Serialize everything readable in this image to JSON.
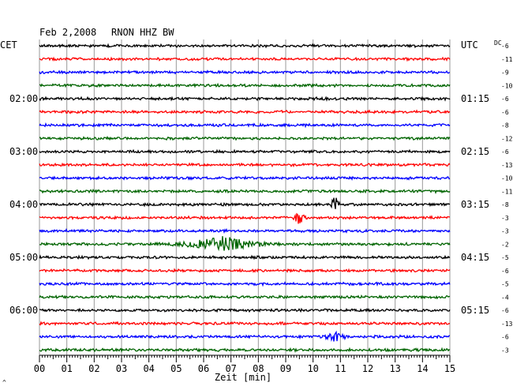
{
  "header": {
    "date": "Feb 2,2008",
    "station": "RNON HHZ BW",
    "left_tz": "CET",
    "right_tz": "UTC",
    "dc_label": "DC"
  },
  "chart_data": {
    "type": "line",
    "title": "Feb 2,2008   RNON HHZ BW",
    "xlabel": "Zeit [min]",
    "x_ticks": [
      "00",
      "01",
      "02",
      "03",
      "04",
      "05",
      "06",
      "07",
      "08",
      "09",
      "10",
      "11",
      "12",
      "13",
      "14",
      "15"
    ],
    "xlim": [
      0,
      15
    ],
    "grid": true,
    "trace_colors": [
      "#000000",
      "#ff0000",
      "#0000ff",
      "#006400"
    ],
    "left_time_labels": [
      {
        "row": 4,
        "label": "02:00"
      },
      {
        "row": 8,
        "label": "03:00"
      },
      {
        "row": 12,
        "label": "04:00"
      },
      {
        "row": 16,
        "label": "05:00"
      },
      {
        "row": 20,
        "label": "06:00"
      }
    ],
    "right_time_labels": [
      {
        "row": 4,
        "label": "01:15"
      },
      {
        "row": 8,
        "label": "02:15"
      },
      {
        "row": 12,
        "label": "03:15"
      },
      {
        "row": 16,
        "label": "04:15"
      },
      {
        "row": 20,
        "label": "05:15"
      }
    ],
    "dc_offsets": [
      "-6",
      "-11",
      "-9",
      "-10",
      "-6",
      "-6",
      "-8",
      "-12",
      "-6",
      "-13",
      "-10",
      "-11",
      "-8",
      "-3",
      "-3",
      "-2",
      "-5",
      "-6",
      "-5",
      "-4",
      "-6",
      "-13",
      "-6",
      "-3"
    ],
    "events": [
      {
        "row": 12,
        "minute": 10.8,
        "amplitude": 1.0,
        "duration": 0.3
      },
      {
        "row": 13,
        "minute": 9.5,
        "amplitude": 1.0,
        "duration": 0.3
      },
      {
        "row": 15,
        "minute": 6.7,
        "amplitude": 0.8,
        "duration": 2.5
      },
      {
        "row": 22,
        "minute": 10.8,
        "amplitude": 0.55,
        "duration": 0.6
      }
    ],
    "corner_mark": "^"
  }
}
